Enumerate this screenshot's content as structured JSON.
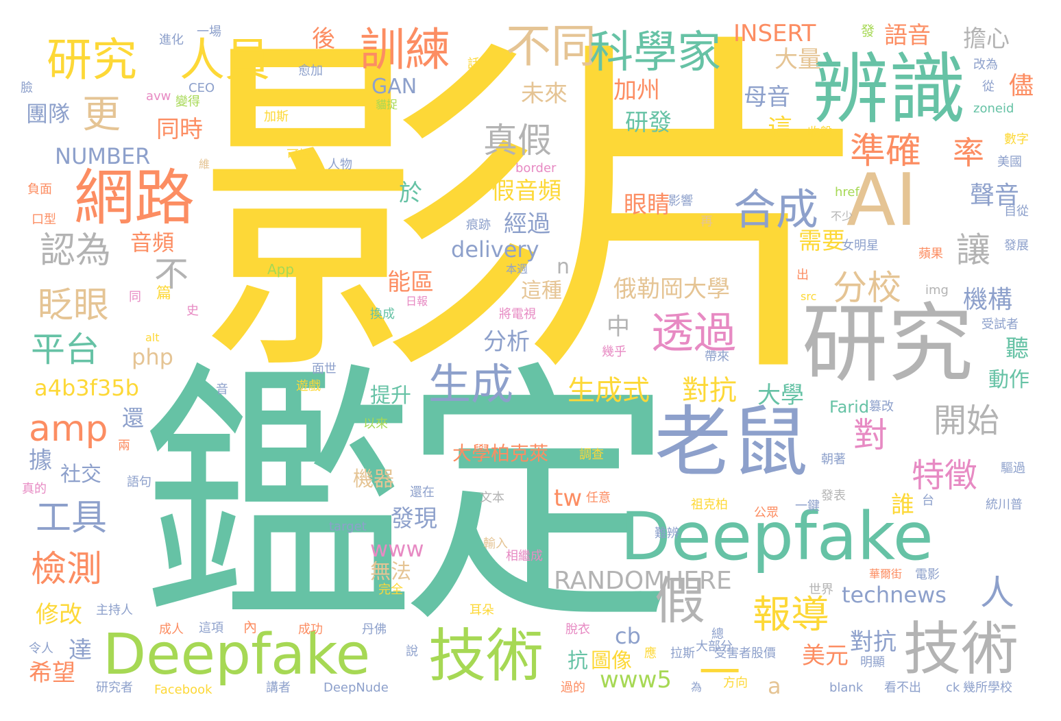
{
  "palette": {
    "yellow": "#fdd837",
    "teal": "#66c2a5",
    "orange": "#fc8d62",
    "blue": "#8da0cb",
    "pink": "#e78ac3",
    "green": "#a6d854",
    "tan": "#e5c494",
    "gray": "#b3b3b3"
  },
  "words": [
    {
      "text": "影片",
      "color": "#fdd837"
    },
    {
      "text": "鑑定",
      "color": "#66c2a5"
    },
    {
      "text": "研究",
      "color": "#b3b3b3"
    },
    {
      "text": "辨識",
      "color": "#66c2a5"
    },
    {
      "text": "老鼠",
      "color": "#8da0cb"
    },
    {
      "text": "Deepfake",
      "color": "#66c2a5"
    },
    {
      "text": "Deepfake",
      "color": "#a6d854"
    },
    {
      "text": "AI",
      "color": "#e5c494"
    },
    {
      "text": "技術",
      "color": "#a6d854"
    },
    {
      "text": "技術",
      "color": "#b3b3b3"
    },
    {
      "text": "網路",
      "color": "#fc8d62"
    },
    {
      "text": "研究",
      "color": "#fdd837"
    },
    {
      "text": "人員",
      "color": "#fdd837"
    },
    {
      "text": "訓練",
      "color": "#fc8d62"
    },
    {
      "text": "不同",
      "color": "#e5c494"
    },
    {
      "text": "科學家",
      "color": "#66c2a5"
    },
    {
      "text": "合成",
      "color": "#8da0cb"
    },
    {
      "text": "透過",
      "color": "#e78ac3"
    },
    {
      "text": "生成",
      "color": "#8da0cb"
    },
    {
      "text": "準確",
      "color": "#fc8d62"
    },
    {
      "text": "率",
      "color": "#fc8d62"
    },
    {
      "text": "分校",
      "color": "#e5c494"
    },
    {
      "text": "讓",
      "color": "#b3b3b3"
    },
    {
      "text": "更",
      "color": "#e5c494"
    },
    {
      "text": "真假",
      "color": "#b3b3b3"
    },
    {
      "text": "認為",
      "color": "#b3b3b3"
    },
    {
      "text": "眨眼",
      "color": "#e5c494"
    },
    {
      "text": "平台",
      "color": "#66c2a5"
    },
    {
      "text": "工具",
      "color": "#8da0cb"
    },
    {
      "text": "檢測",
      "color": "#fc8d62"
    },
    {
      "text": "amp",
      "color": "#fc8d62"
    },
    {
      "text": "假",
      "color": "#b3b3b3"
    },
    {
      "text": "報導",
      "color": "#fdd837"
    },
    {
      "text": "開始",
      "color": "#b3b3b3"
    },
    {
      "text": "特徵",
      "color": "#e78ac3"
    },
    {
      "text": "對",
      "color": "#e78ac3"
    },
    {
      "text": "人",
      "color": "#8da0cb"
    },
    {
      "text": "不",
      "color": "#b3b3b3"
    },
    {
      "text": "生成式",
      "color": "#fdd837"
    },
    {
      "text": "對抗",
      "color": "#fdd837"
    },
    {
      "text": "RANDOMHERE",
      "color": "#b3b3b3"
    },
    {
      "text": "technews",
      "color": "#8da0cb"
    },
    {
      "text": "INSERT",
      "color": "#fc8d62"
    },
    {
      "text": "NUMBER",
      "color": "#8da0cb"
    },
    {
      "text": "a4b3f35b",
      "color": "#fdd837"
    },
    {
      "text": "delivery",
      "color": "#8da0cb"
    },
    {
      "text": "www5",
      "color": "#a6d854"
    },
    {
      "text": "www",
      "color": "#e78ac3"
    },
    {
      "text": "GAN",
      "color": "#8da0cb"
    },
    {
      "text": "php",
      "color": "#e5c494"
    },
    {
      "text": "假音頻",
      "color": "#fdd837"
    },
    {
      "text": "俄勒岡大學",
      "color": "#e5c494"
    },
    {
      "text": "大學柏克萊",
      "color": "#fc8d62"
    },
    {
      "text": "聲音",
      "color": "#8da0cb"
    },
    {
      "text": "語音",
      "color": "#fc8d62"
    },
    {
      "text": "擔心",
      "color": "#b3b3b3"
    },
    {
      "text": "大量",
      "color": "#e5c494"
    },
    {
      "text": "母音",
      "color": "#8da0cb"
    },
    {
      "text": "儘",
      "color": "#fc8d62"
    },
    {
      "text": "團隊",
      "color": "#8da0cb"
    },
    {
      "text": "同時",
      "color": "#fc8d62"
    },
    {
      "text": "未來",
      "color": "#e5c494"
    },
    {
      "text": "加州",
      "color": "#fc8d62"
    },
    {
      "text": "研發",
      "color": "#66c2a5"
    },
    {
      "text": "這",
      "color": "#fdd837"
    },
    {
      "text": "後",
      "color": "#fc8d62"
    },
    {
      "text": "眼睛",
      "color": "#fc8d62"
    },
    {
      "text": "經過",
      "color": "#8da0cb"
    },
    {
      "text": "需要",
      "color": "#fdd837"
    },
    {
      "text": "音頻",
      "color": "#fc8d62"
    },
    {
      "text": "於",
      "color": "#66c2a5"
    },
    {
      "text": "能區",
      "color": "#fc8d62"
    },
    {
      "text": "這種",
      "color": "#e5c494"
    },
    {
      "text": "機構",
      "color": "#8da0cb"
    },
    {
      "text": "中",
      "color": "#b3b3b3"
    },
    {
      "text": "分析",
      "color": "#8da0cb"
    },
    {
      "text": "聽",
      "color": "#66c2a5"
    },
    {
      "text": "動作",
      "color": "#66c2a5"
    },
    {
      "text": "大學",
      "color": "#66c2a5"
    },
    {
      "text": "提升",
      "color": "#66c2a5"
    },
    {
      "text": "還",
      "color": "#8da0cb"
    },
    {
      "text": "據",
      "color": "#8da0cb"
    },
    {
      "text": "社交",
      "color": "#8da0cb"
    },
    {
      "text": "機器",
      "color": "#e5c494"
    },
    {
      "text": "發現",
      "color": "#8da0cb"
    },
    {
      "text": "tw",
      "color": "#fc8d62"
    },
    {
      "text": "誰",
      "color": "#fdd837"
    },
    {
      "text": "無法",
      "color": "#e5c494"
    },
    {
      "text": "修改",
      "color": "#fdd837"
    },
    {
      "text": "希望",
      "color": "#fc8d62"
    },
    {
      "text": "達",
      "color": "#8da0cb"
    },
    {
      "text": "抗",
      "color": "#66c2a5"
    },
    {
      "text": "圖像",
      "color": "#fdd837"
    },
    {
      "text": "美元",
      "color": "#fc8d62"
    },
    {
      "text": "對抗",
      "color": "#8da0cb"
    },
    {
      "text": "cb",
      "color": "#8da0cb"
    },
    {
      "text": "a",
      "color": "#e5c494"
    },
    {
      "text": "Farid",
      "color": "#66c2a5"
    },
    {
      "text": "內",
      "color": "#fc8d62"
    },
    {
      "text": "一",
      "color": "#fdd837"
    },
    {
      "text": "n",
      "color": "#b3b3b3"
    },
    {
      "text": "進化",
      "color": "#8da0cb"
    },
    {
      "text": "一場",
      "color": "#8da0cb"
    },
    {
      "text": "愈加",
      "color": "#8da0cb"
    },
    {
      "text": "話",
      "color": "#fdd837"
    },
    {
      "text": "發",
      "color": "#a6d854"
    },
    {
      "text": "臉",
      "color": "#8da0cb"
    },
    {
      "text": "CEO",
      "color": "#8da0cb"
    },
    {
      "text": "avw",
      "color": "#e78ac3"
    },
    {
      "text": "變得",
      "color": "#a6d854"
    },
    {
      "text": "貓捉",
      "color": "#a6d854"
    },
    {
      "text": "加斯",
      "color": "#fdd837"
    },
    {
      "text": "改為",
      "color": "#8da0cb"
    },
    {
      "text": "從",
      "color": "#8da0cb"
    },
    {
      "text": "zoneid",
      "color": "#66c2a5"
    },
    {
      "text": "收盤",
      "color": "#fdd837"
    },
    {
      "text": "數字",
      "color": "#fdd837"
    },
    {
      "text": "美國",
      "color": "#8da0cb"
    },
    {
      "text": "可控",
      "color": "#fdd837"
    },
    {
      "text": "維",
      "color": "#e5c494"
    },
    {
      "text": "人物",
      "color": "#8da0cb"
    },
    {
      "text": "border",
      "color": "#e78ac3"
    },
    {
      "text": "負面",
      "color": "#fc8d62"
    },
    {
      "text": "口型",
      "color": "#fc8d62"
    },
    {
      "text": "影響",
      "color": "#8da0cb"
    },
    {
      "text": "href",
      "color": "#a6d854"
    },
    {
      "text": "不少",
      "color": "#b3b3b3"
    },
    {
      "text": "再",
      "color": "#e5c494"
    },
    {
      "text": "自從",
      "color": "#8da0cb"
    },
    {
      "text": "痕跡",
      "color": "#8da0cb"
    },
    {
      "text": "女明星",
      "color": "#8da0cb"
    },
    {
      "text": "發展",
      "color": "#8da0cb"
    },
    {
      "text": "蘋果",
      "color": "#fc8d62"
    },
    {
      "text": "App",
      "color": "#a6d854"
    },
    {
      "text": "本週",
      "color": "#8da0cb"
    },
    {
      "text": "出",
      "color": "#fc8d62"
    },
    {
      "text": "src",
      "color": "#fdd837"
    },
    {
      "text": "img",
      "color": "#b3b3b3"
    },
    {
      "text": "同",
      "color": "#e78ac3"
    },
    {
      "text": "篇",
      "color": "#fdd837"
    },
    {
      "text": "史",
      "color": "#e78ac3"
    },
    {
      "text": "日報",
      "color": "#e78ac3"
    },
    {
      "text": "將電視",
      "color": "#e78ac3"
    },
    {
      "text": "換成",
      "color": "#66c2a5"
    },
    {
      "text": "受試者",
      "color": "#8da0cb"
    },
    {
      "text": "alt",
      "color": "#fdd837"
    },
    {
      "text": "幾乎",
      "color": "#e78ac3"
    },
    {
      "text": "帶來",
      "color": "#8da0cb"
    },
    {
      "text": "音",
      "color": "#8da0cb"
    },
    {
      "text": "面世",
      "color": "#8da0cb"
    },
    {
      "text": "遊戲",
      "color": "#fdd837"
    },
    {
      "text": "篡改",
      "color": "#8da0cb"
    },
    {
      "text": "以來",
      "color": "#a6d854"
    },
    {
      "text": "兩",
      "color": "#fc8d62"
    },
    {
      "text": "語句",
      "color": "#8da0cb"
    },
    {
      "text": "真的",
      "color": "#e78ac3"
    },
    {
      "text": "調查",
      "color": "#fdd837"
    },
    {
      "text": "朝著",
      "color": "#8da0cb"
    },
    {
      "text": "驅過",
      "color": "#8da0cb"
    },
    {
      "text": "還在",
      "color": "#8da0cb"
    },
    {
      "text": "文本",
      "color": "#b3b3b3"
    },
    {
      "text": "任意",
      "color": "#fc8d62"
    },
    {
      "text": "祖克柏",
      "color": "#fdd837"
    },
    {
      "text": "台",
      "color": "#8da0cb"
    },
    {
      "text": "統川普",
      "color": "#8da0cb"
    },
    {
      "text": "發表",
      "color": "#b3b3b3"
    },
    {
      "text": "一鍵",
      "color": "#8da0cb"
    },
    {
      "text": "公眾",
      "color": "#fc8d62"
    },
    {
      "text": "target",
      "color": "#8da0cb"
    },
    {
      "text": "難辨",
      "color": "#8da0cb"
    },
    {
      "text": "輸入",
      "color": "#e5c494"
    },
    {
      "text": "相繼成",
      "color": "#e78ac3"
    },
    {
      "text": "華爾街",
      "color": "#fc8d62"
    },
    {
      "text": "電影",
      "color": "#8da0cb"
    },
    {
      "text": "世界",
      "color": "#b3b3b3"
    },
    {
      "text": "完全",
      "color": "#fdd837"
    },
    {
      "text": "主持人",
      "color": "#8da0cb"
    },
    {
      "text": "耳朵",
      "color": "#fdd837"
    },
    {
      "text": "成人",
      "color": "#fc8d62"
    },
    {
      "text": "這項",
      "color": "#8da0cb"
    },
    {
      "text": "成功",
      "color": "#fc8d62"
    },
    {
      "text": "丹佛",
      "color": "#8da0cb"
    },
    {
      "text": "脫衣",
      "color": "#e78ac3"
    },
    {
      "text": "總",
      "color": "#8da0cb"
    },
    {
      "text": "大部分",
      "color": "#8da0cb"
    },
    {
      "text": "令人",
      "color": "#8da0cb"
    },
    {
      "text": "說",
      "color": "#8da0cb"
    },
    {
      "text": "應",
      "color": "#fdd837"
    },
    {
      "text": "拉斯",
      "color": "#8da0cb"
    },
    {
      "text": "受害者股價",
      "color": "#8da0cb"
    },
    {
      "text": "明顯",
      "color": "#8da0cb"
    },
    {
      "text": "研究者",
      "color": "#8da0cb"
    },
    {
      "text": "Facebook",
      "color": "#fdd837"
    },
    {
      "text": "講者",
      "color": "#8da0cb"
    },
    {
      "text": "DeepNude",
      "color": "#8da0cb"
    },
    {
      "text": "過的",
      "color": "#fc8d62"
    },
    {
      "text": "為",
      "color": "#8da0cb"
    },
    {
      "text": "方向",
      "color": "#fdd837"
    },
    {
      "text": "blank",
      "color": "#8da0cb"
    },
    {
      "text": "看不出",
      "color": "#8da0cb"
    },
    {
      "text": "ck",
      "color": "#8da0cb"
    },
    {
      "text": "幾所學校",
      "color": "#8da0cb"
    }
  ]
}
